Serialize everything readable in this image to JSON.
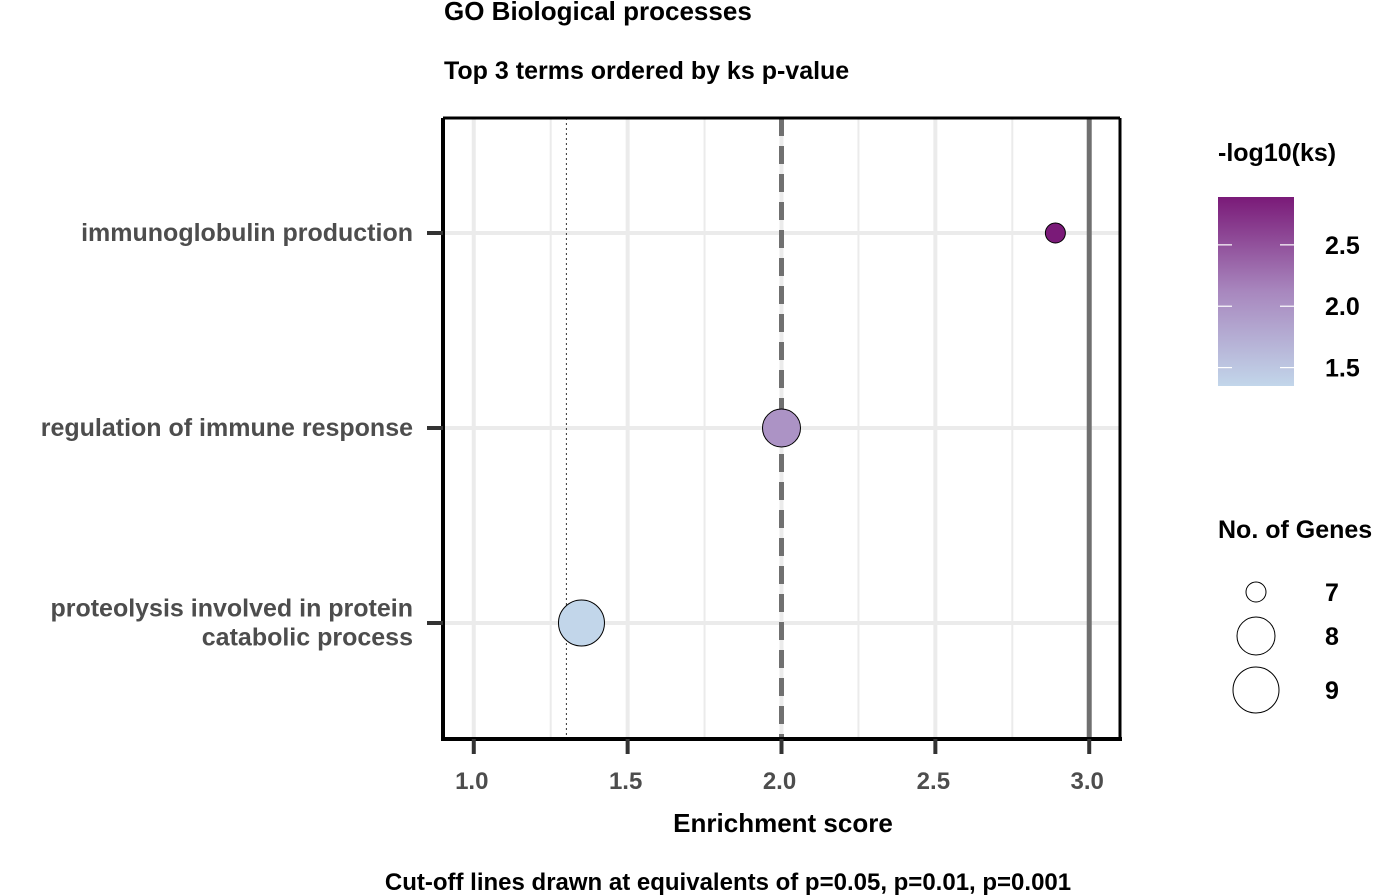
{
  "chart_data": {
    "type": "scatter",
    "title": "GO Biological processes",
    "subtitle": "Top 3 terms ordered by ks p-value",
    "xlabel": "Enrichment score",
    "caption": "Cut-off lines drawn at equivalents of p=0.05, p=0.01, p=0.001",
    "xlim": [
      0.9,
      3.1
    ],
    "xticks": [
      "1.0",
      "1.5",
      "2.0",
      "2.5",
      "3.0"
    ],
    "grid": true,
    "categories": [
      [
        "immunoglobulin production"
      ],
      [
        "regulation of immune response"
      ],
      [
        "proteolysis involved in protein",
        "catabolic process"
      ]
    ],
    "points": [
      {
        "x": 2.89,
        "neg_log10_ks": 2.89,
        "genes": 7
      },
      {
        "x": 2.0,
        "neg_log10_ks": 2.0,
        "genes": 8
      },
      {
        "x": 1.35,
        "neg_log10_ks": 1.35,
        "genes": 9
      }
    ],
    "cutoff_lines": [
      {
        "x": 1.301,
        "style": "dotted"
      },
      {
        "x": 2.0,
        "style": "dashed"
      },
      {
        "x": 3.0,
        "style": "solid"
      }
    ],
    "color_legend": {
      "title": "-log10(ks)",
      "min": 1.35,
      "max": 2.89,
      "ticks": [
        "1.5",
        "2.0",
        "2.5"
      ],
      "low_color": "#c2d6ea",
      "mid_color": "#a887be",
      "high_color": "#7a1a78",
      "placement": "right"
    },
    "size_legend": {
      "title": "No. of Genes",
      "entries": [
        "7",
        "8",
        "9"
      ],
      "placement": "right"
    }
  }
}
